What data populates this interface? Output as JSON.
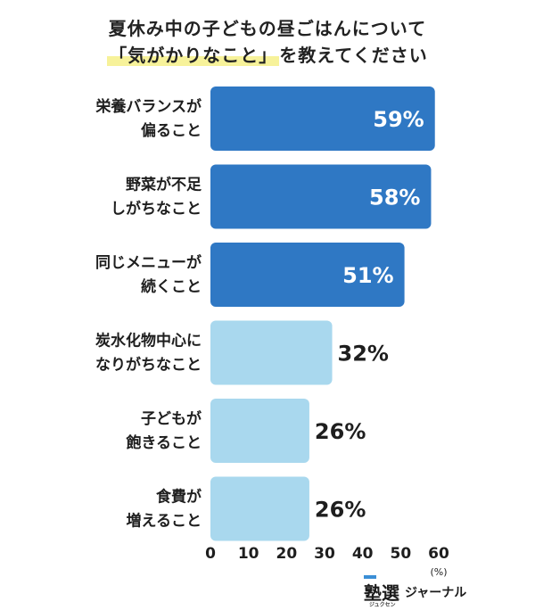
{
  "title_line1": "夏休み中の子どもの昼ごはんについて",
  "title_line2_highlight": "「気がかりなこと」",
  "title_line2_rest": "を教えてください",
  "logo": {
    "mark": "塾選",
    "ruby": "ジュクセン",
    "name": "ジャーナル"
  },
  "colors": {
    "bar_dark": "#2f78c4",
    "bar_light": "#a9d8ee",
    "highlight": "#f7f29a"
  },
  "chart_data": {
    "type": "bar",
    "orientation": "horizontal",
    "categories": [
      [
        "栄養バランスが",
        "偏ること"
      ],
      [
        "野菜が不足",
        "しがちなこと"
      ],
      [
        "同じメニューが",
        "続くこと"
      ],
      [
        "炭水化物中心に",
        "なりがちなこと"
      ],
      [
        "子どもが",
        "飽きること"
      ],
      [
        "食費が",
        "増えること"
      ]
    ],
    "values": [
      59,
      58,
      51,
      32,
      26,
      26
    ],
    "value_labels": [
      "59%",
      "58%",
      "51%",
      "32%",
      "26%",
      "26%"
    ],
    "highlight_count": 3,
    "xlim": [
      0,
      60
    ],
    "xticks": [
      0,
      10,
      20,
      30,
      40,
      50,
      60
    ],
    "xunit": "(%)",
    "grid": false
  }
}
